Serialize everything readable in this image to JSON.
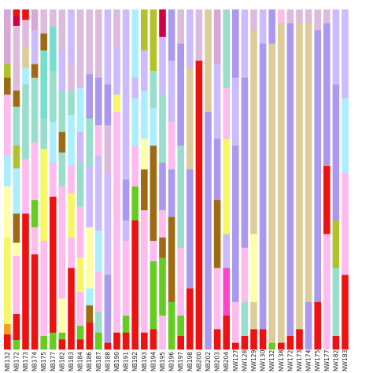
{
  "chart_data": {
    "type": "bar",
    "stacked": true,
    "normalized": true,
    "ylim": [
      0,
      1
    ],
    "categories": [
      "NB132",
      "NB172",
      "NB173",
      "NB174",
      "NB175",
      "NB177",
      "NB182",
      "NB183",
      "NB184",
      "NB186",
      "NB187",
      "NB188",
      "NB190",
      "NB191",
      "NB192",
      "NB193",
      "NB194",
      "NB195",
      "NB196",
      "NB197",
      "NB198",
      "NB200",
      "NB202",
      "NB203",
      "NB204",
      "NW127",
      "NW128",
      "NW129",
      "NW130",
      "NW132",
      "NW138",
      "NW172",
      "NW173",
      "NW174",
      "NW175",
      "NW177",
      "NW182",
      "NW183"
    ],
    "palette": [
      "#ee1111",
      "#66cc22",
      "#9e6a14",
      "#ffffaa",
      "#ffffff",
      "#ffbbee",
      "#f7f766",
      "#aabbcc",
      "#99ddcc",
      "#aaeeff",
      "#ccbbff",
      "#ddbbdd",
      "#aa99ee",
      "#ddcc99",
      "#b2c22a",
      "#77ddcc",
      "#cc0044",
      "#ff44cc",
      "#ffbb88",
      "#ff9922",
      "#d7a8d7",
      "#bbbbbb",
      "#ee8877",
      "#ddeecc"
    ],
    "columns": [
      [
        [
          0.045,
          "#ee1111"
        ],
        [
          0.03,
          "#ff9922"
        ],
        [
          0.255,
          "#f7f766"
        ],
        [
          0.15,
          "#ffffaa"
        ],
        [
          0.09,
          "#aaeeff"
        ],
        [
          0.18,
          "#ffbbee"
        ],
        [
          0.05,
          "#9e6a14"
        ],
        [
          0.04,
          "#b2c22a"
        ],
        [
          0.16,
          "#d7a8d7"
        ]
      ],
      [
        [
          0.03,
          "#66cc22"
        ],
        [
          0.08,
          "#ee1111"
        ],
        [
          0.18,
          "#ffbbee"
        ],
        [
          0.04,
          "#ffffaa"
        ],
        [
          0.09,
          "#9e6a14"
        ],
        [
          0.14,
          "#aaeeff"
        ],
        [
          0.07,
          "#b2c22a"
        ],
        [
          0.12,
          "#99ddcc"
        ],
        [
          0.05,
          "#9e6a14"
        ],
        [
          0.2,
          "#ddbbdd"
        ],
        [
          0.03,
          "#cc0044"
        ],
        [
          0.02,
          "#ee1111"
        ]
      ],
      [
        [
          0.06,
          "#ee1111"
        ],
        [
          0.34,
          "#ee1111"
        ],
        [
          0.16,
          "#ffbbee"
        ],
        [
          0.12,
          "#99ddcc"
        ],
        [
          0.1,
          "#99ddcc"
        ],
        [
          0.05,
          "#aaeeff"
        ],
        [
          0.06,
          "#ddcc99"
        ],
        [
          0.08,
          "#ddbbdd"
        ],
        [
          0.03,
          "#ee1111"
        ]
      ],
      [
        [
          0.08,
          "#ee1111"
        ],
        [
          0.2,
          "#ee1111"
        ],
        [
          0.08,
          "#ffbbee"
        ],
        [
          0.08,
          "#66cc22"
        ],
        [
          0.17,
          "#ffbbee"
        ],
        [
          0.19,
          "#99ddcc"
        ],
        [
          0.04,
          "#9e6a14"
        ],
        [
          0.1,
          "#ccbbff"
        ],
        [
          0.06,
          "#d7a8d7"
        ]
      ],
      [
        [
          0.04,
          "#66cc22"
        ],
        [
          0.16,
          "#ffbbee"
        ],
        [
          0.12,
          "#ffbbee"
        ],
        [
          0.27,
          "#f7f766"
        ],
        [
          0.09,
          "#99ddcc"
        ],
        [
          0.2,
          "#77ddcc"
        ],
        [
          0.05,
          "#9e6a14"
        ],
        [
          0.07,
          "#ddbbdd"
        ]
      ],
      [
        [
          0.05,
          "#66cc22"
        ],
        [
          0.4,
          "#ee1111"
        ],
        [
          0.1,
          "#ffbbee"
        ],
        [
          0.12,
          "#aaeeff"
        ],
        [
          0.15,
          "#99ddcc"
        ],
        [
          0.13,
          "#77ddcc"
        ],
        [
          0.05,
          "#ddbbdd"
        ]
      ],
      [
        [
          0.03,
          "#ee1111"
        ],
        [
          0.02,
          "#66cc22"
        ],
        [
          0.1,
          "#ffffaa"
        ],
        [
          0.21,
          "#ffbbee"
        ],
        [
          0.12,
          "#ffbbee"
        ],
        [
          0.1,
          "#99ddcc"
        ],
        [
          0.06,
          "#9e6a14"
        ],
        [
          0.12,
          "#99ddcc"
        ],
        [
          0.12,
          "#ccbbff"
        ],
        [
          0.12,
          "#ddbbdd"
        ]
      ],
      [
        [
          0.05,
          "#ee1111"
        ],
        [
          0.19,
          "#ee1111"
        ],
        [
          0.09,
          "#ffbbee"
        ],
        [
          0.13,
          "#f7f766"
        ],
        [
          0.08,
          "#ffbbee"
        ],
        [
          0.15,
          "#aaeeff"
        ],
        [
          0.07,
          "#99ddcc"
        ],
        [
          0.08,
          "#ddbbdd"
        ],
        [
          0.16,
          "#ccbbff"
        ]
      ],
      [
        [
          0.03,
          "#ee1111"
        ],
        [
          0.04,
          "#66cc22"
        ],
        [
          0.1,
          "#ffbbee"
        ],
        [
          0.1,
          "#f7f766"
        ],
        [
          0.15,
          "#ffbbee"
        ],
        [
          0.13,
          "#99ddcc"
        ],
        [
          0.09,
          "#ccbbff"
        ],
        [
          0.13,
          "#aaeeff"
        ],
        [
          0.23,
          "#ddbbdd"
        ]
      ],
      [
        [
          0.08,
          "#ee1111"
        ],
        [
          0.05,
          "#9e6a14"
        ],
        [
          0.05,
          "#aaeeff"
        ],
        [
          0.18,
          "#ffffaa"
        ],
        [
          0.18,
          "#ccbbff"
        ],
        [
          0.14,
          "#99ddcc"
        ],
        [
          0.13,
          "#aa99ee"
        ],
        [
          0.19,
          "#ddbbdd"
        ]
      ],
      [
        [
          0.05,
          "#66cc22"
        ],
        [
          0.06,
          "#99ddcc"
        ],
        [
          0.12,
          "#ffbbee"
        ],
        [
          0.12,
          "#aaeeff"
        ],
        [
          0.22,
          "#ccbbff"
        ],
        [
          0.09,
          "#ffbbee"
        ],
        [
          0.14,
          "#aa99ee"
        ],
        [
          0.2,
          "#ddbbdd"
        ]
      ],
      [
        [
          0.02,
          "#ee1111"
        ],
        [
          0.2,
          "#aa99ee"
        ],
        [
          0.3,
          "#ccbbff"
        ],
        [
          0.14,
          "#ddbbdd"
        ],
        [
          0.12,
          "#aa99ee"
        ],
        [
          0.22,
          "#ccbbff"
        ]
      ],
      [
        [
          0.05,
          "#ee1111"
        ],
        [
          0.05,
          "#ffbbee"
        ],
        [
          0.6,
          "#ffbbee"
        ],
        [
          0.05,
          "#f7f766"
        ],
        [
          0.14,
          "#ccbbff"
        ],
        [
          0.11,
          "#ddbbdd"
        ]
      ],
      [
        [
          0.05,
          "#ee1111"
        ],
        [
          0.05,
          "#66cc22"
        ],
        [
          0.22,
          "#ffbbee"
        ],
        [
          0.06,
          "#ccbbff"
        ],
        [
          0.12,
          "#aa99ee"
        ],
        [
          0.5,
          "#ccbbff"
        ]
      ],
      [
        [
          0.38,
          "#ee1111"
        ],
        [
          0.1,
          "#66cc22"
        ],
        [
          0.12,
          "#ffbbee"
        ],
        [
          0.14,
          "#aaeeff"
        ],
        [
          0.06,
          "#ccbbff"
        ],
        [
          0.2,
          "#aaeeff"
        ]
      ],
      [
        [
          0.05,
          "#ee1111"
        ],
        [
          0.36,
          "#ffbbee"
        ],
        [
          0.12,
          "#9e6a14"
        ],
        [
          0.09,
          "#ffffaa"
        ],
        [
          0.14,
          "#aaeeff"
        ],
        [
          0.12,
          "#ccbbff"
        ],
        [
          0.12,
          "#b2c22a"
        ]
      ],
      [
        [
          0.06,
          "#ee1111"
        ],
        [
          0.2,
          "#66cc22"
        ],
        [
          0.06,
          "#ffbbee"
        ],
        [
          0.28,
          "#9e6a14"
        ],
        [
          0.11,
          "#aaeeff"
        ],
        [
          0.11,
          "#99ddcc"
        ],
        [
          0.18,
          "#b2c22a"
        ]
      ],
      [
        [
          0.1,
          "#ffbbee"
        ],
        [
          0.17,
          "#66cc22"
        ],
        [
          0.06,
          "#9e6a14"
        ],
        [
          0.08,
          "#ffbbee"
        ],
        [
          0.14,
          "#aa99ee"
        ],
        [
          0.2,
          "#99ddcc"
        ],
        [
          0.17,
          "#ccbbff"
        ],
        [
          0.08,
          "#cc0044"
        ]
      ],
      [
        [
          0.14,
          "#66cc22"
        ],
        [
          0.25,
          "#9e6a14"
        ],
        [
          0.14,
          "#aa99ee"
        ],
        [
          0.14,
          "#ffbbee"
        ],
        [
          0.18,
          "#ccbbff"
        ],
        [
          0.15,
          "#aa99ee"
        ]
      ],
      [
        [
          0.04,
          "#ee1111"
        ],
        [
          0.06,
          "#66cc22"
        ],
        [
          0.2,
          "#ffbbee"
        ],
        [
          0.3,
          "#99ddcc"
        ],
        [
          0.3,
          "#aa99ee"
        ],
        [
          0.1,
          "#ddbbdd"
        ]
      ],
      [
        [
          0.18,
          "#ee1111"
        ],
        [
          0.35,
          "#aa99ee"
        ],
        [
          0.3,
          "#ddcc99"
        ],
        [
          0.17,
          "#ccbbff"
        ]
      ],
      [
        [
          0.85,
          "#ee1111"
        ],
        [
          0.15,
          "#ddbbdd"
        ]
      ],
      [
        [
          0.7,
          "#aa99ee"
        ],
        [
          0.3,
          "#ddcc99"
        ]
      ],
      [
        [
          0.06,
          "#ee1111"
        ],
        [
          0.18,
          "#ffbbee"
        ],
        [
          0.2,
          "#9e6a14"
        ],
        [
          0.18,
          "#aa99ee"
        ],
        [
          0.22,
          "#ccbbff"
        ],
        [
          0.16,
          "#d7a8d7"
        ]
      ],
      [
        [
          0.1,
          "#ee1111"
        ],
        [
          0.14,
          "#ff44cc"
        ],
        [
          0.1,
          "#ccbbff"
        ],
        [
          0.28,
          "#f7f766"
        ],
        [
          0.15,
          "#ffbbee"
        ],
        [
          0.23,
          "#99ddcc"
        ]
      ],
      [
        [
          0.02,
          "#ee1111"
        ],
        [
          0.12,
          "#ffbbee"
        ],
        [
          0.46,
          "#aa99ee"
        ],
        [
          0.2,
          "#ccbbff"
        ],
        [
          0.2,
          "#aa99ee"
        ]
      ],
      [
        [
          0.04,
          "#ee1111"
        ],
        [
          0.1,
          "#99ddcc"
        ],
        [
          0.16,
          "#ffbbee"
        ],
        [
          0.5,
          "#aa99ee"
        ],
        [
          0.2,
          "#ccbbff"
        ]
      ],
      [
        [
          0.06,
          "#ee1111"
        ],
        [
          0.08,
          "#ddcc99"
        ],
        [
          0.2,
          "#ffffaa"
        ],
        [
          0.6,
          "#ddcc99"
        ],
        [
          0.06,
          "#ddbbdd"
        ]
      ],
      [
        [
          0.06,
          "#ee1111"
        ],
        [
          0.84,
          "#aa99ee"
        ],
        [
          0.1,
          "#ccbbff"
        ]
      ],
      [
        [
          0.02,
          "#66cc22"
        ],
        [
          0.88,
          "#ddcc99"
        ],
        [
          0.1,
          "#aa99ee"
        ]
      ],
      [
        [
          0.02,
          "#ee1111"
        ],
        [
          0.94,
          "#ddcc99"
        ],
        [
          0.04,
          "#ffbbee"
        ]
      ],
      [
        [
          0.04,
          "#ee1111"
        ],
        [
          0.92,
          "#aa99ee"
        ],
        [
          0.04,
          "#ddbbdd"
        ]
      ],
      [
        [
          0.06,
          "#ee1111"
        ],
        [
          0.9,
          "#ddcc99"
        ],
        [
          0.04,
          "#ddbbdd"
        ]
      ],
      [
        [
          0.14,
          "#aa99ee"
        ],
        [
          0.82,
          "#ddcc99"
        ],
        [
          0.04,
          "#ddbbdd"
        ]
      ],
      [
        [
          0.14,
          "#ee1111"
        ],
        [
          0.8,
          "#aa99ee"
        ],
        [
          0.06,
          "#ddbbdd"
        ]
      ],
      [
        [
          0.34,
          "#ffbbee"
        ],
        [
          0.2,
          "#ee1111"
        ],
        [
          0.42,
          "#aa99ee"
        ],
        [
          0.04,
          "#ddbbdd"
        ]
      ],
      [
        [
          0.04,
          "#ee1111"
        ],
        [
          0.2,
          "#99ddcc"
        ],
        [
          0.14,
          "#b2c22a"
        ],
        [
          0.4,
          "#aa99ee"
        ],
        [
          0.22,
          "#ccbbff"
        ]
      ],
      [
        [
          0.22,
          "#ee1111"
        ],
        [
          0.3,
          "#ffbbee"
        ],
        [
          0.22,
          "#aaeeff"
        ],
        [
          0.26,
          "#ccbbff"
        ]
      ]
    ]
  }
}
